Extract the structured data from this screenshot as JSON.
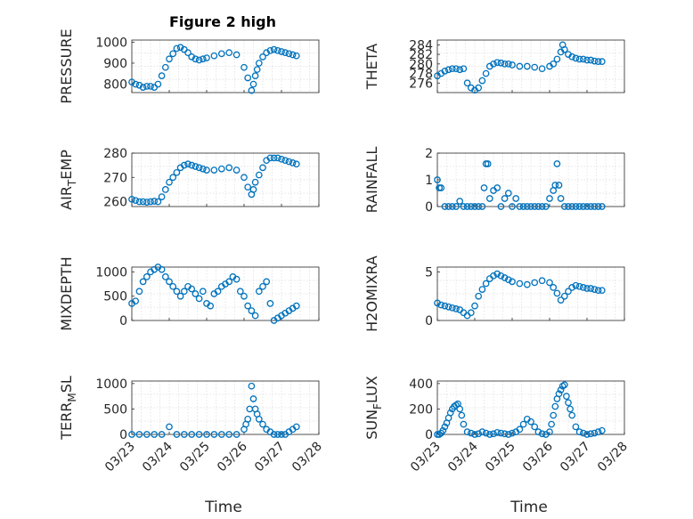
{
  "figure_title": "Figure 2 high",
  "x_date_ticks": [
    "03/23",
    "03/24",
    "03/25",
    "03/26",
    "03/27",
    "03/28"
  ],
  "xlabel": "Time",
  "marker_color": "#0072BD",
  "chart_data": [
    {
      "type": "scatter",
      "ylabel": "PRESSURE",
      "ylim": [
        760,
        1010
      ],
      "yticks": [
        "800",
        "900",
        "1000"
      ],
      "ytick_values": [
        800,
        900,
        1000
      ],
      "x": [
        0,
        0.1,
        0.2,
        0.3,
        0.4,
        0.5,
        0.6,
        0.7,
        0.8,
        0.9,
        1.0,
        1.1,
        1.2,
        1.3,
        1.4,
        1.5,
        1.6,
        1.7,
        1.8,
        1.9,
        2.0,
        2.2,
        2.4,
        2.6,
        2.8,
        3.0,
        3.1,
        3.2,
        3.25,
        3.3,
        3.35,
        3.4,
        3.5,
        3.6,
        3.7,
        3.8,
        3.9,
        4.0,
        4.1,
        4.2,
        4.3,
        4.4
      ],
      "values": [
        810,
        800,
        795,
        785,
        790,
        790,
        785,
        800,
        840,
        880,
        920,
        945,
        970,
        975,
        965,
        950,
        930,
        920,
        915,
        920,
        925,
        935,
        945,
        950,
        940,
        880,
        830,
        770,
        800,
        840,
        870,
        900,
        930,
        950,
        960,
        965,
        960,
        955,
        950,
        945,
        940,
        935
      ]
    },
    {
      "type": "scatter",
      "ylabel": "THETA",
      "ylim": [
        274,
        285
      ],
      "yticks": [
        "276",
        "278",
        "280",
        "282",
        "284"
      ],
      "ytick_values": [
        276,
        278,
        280,
        282,
        284
      ],
      "x": [
        0,
        0.1,
        0.2,
        0.3,
        0.4,
        0.5,
        0.6,
        0.7,
        0.8,
        0.9,
        1.0,
        1.1,
        1.2,
        1.3,
        1.4,
        1.5,
        1.6,
        1.7,
        1.8,
        1.9,
        2.0,
        2.2,
        2.4,
        2.6,
        2.8,
        3.0,
        3.1,
        3.2,
        3.3,
        3.35,
        3.4,
        3.5,
        3.6,
        3.7,
        3.8,
        3.9,
        4.0,
        4.1,
        4.2,
        4.3,
        4.4
      ],
      "values": [
        277.5,
        278,
        278.5,
        278.8,
        279,
        279,
        278.8,
        279,
        276,
        275,
        274.5,
        275,
        276.5,
        278,
        279.5,
        280,
        280.3,
        280.2,
        280,
        280,
        279.8,
        279.5,
        279.5,
        279.3,
        279,
        279.5,
        280,
        281,
        282.5,
        284,
        283,
        282,
        281.5,
        281.2,
        281,
        281,
        280.8,
        280.8,
        280.6,
        280.5,
        280.5
      ]
    },
    {
      "type": "scatter",
      "ylabel": "AIR_TEMP",
      "ylim": [
        258,
        280
      ],
      "yticks": [
        "260",
        "270",
        "280"
      ],
      "ytick_values": [
        260,
        270,
        280
      ],
      "x": [
        0,
        0.1,
        0.2,
        0.3,
        0.4,
        0.5,
        0.6,
        0.7,
        0.8,
        0.9,
        1.0,
        1.1,
        1.2,
        1.3,
        1.4,
        1.5,
        1.6,
        1.7,
        1.8,
        1.9,
        2.0,
        2.2,
        2.4,
        2.6,
        2.8,
        3.0,
        3.1,
        3.2,
        3.25,
        3.3,
        3.4,
        3.5,
        3.6,
        3.7,
        3.8,
        3.9,
        4.0,
        4.1,
        4.2,
        4.3,
        4.4
      ],
      "values": [
        261,
        260.5,
        260,
        260,
        259.8,
        260,
        260.2,
        260,
        262,
        265,
        268,
        270,
        272,
        274,
        275,
        275.5,
        275,
        274.5,
        274,
        273.5,
        273,
        273,
        273.5,
        274,
        273,
        270,
        266,
        263,
        265,
        268,
        271,
        274,
        277,
        278,
        278,
        278,
        277.5,
        277,
        276.5,
        276,
        275.5
      ]
    },
    {
      "type": "scatter",
      "ylabel": "RAINFALL",
      "ylim": [
        0,
        2
      ],
      "yticks": [
        "0",
        "1",
        "2"
      ],
      "ytick_values": [
        0,
        1,
        2
      ],
      "x": [
        0,
        0.05,
        0.1,
        0.2,
        0.3,
        0.4,
        0.5,
        0.6,
        0.7,
        0.8,
        0.9,
        1.0,
        1.1,
        1.2,
        1.25,
        1.3,
        1.35,
        1.4,
        1.5,
        1.6,
        1.7,
        1.8,
        1.9,
        2.0,
        2.1,
        2.2,
        2.3,
        2.4,
        2.5,
        2.6,
        2.7,
        2.8,
        2.9,
        3.0,
        3.1,
        3.15,
        3.2,
        3.25,
        3.3,
        3.4,
        3.5,
        3.6,
        3.7,
        3.8,
        3.9,
        4.0,
        4.1,
        4.2,
        4.3,
        4.4
      ],
      "values": [
        1.0,
        0.7,
        0.7,
        0,
        0,
        0,
        0,
        0.2,
        0,
        0,
        0,
        0,
        0,
        0,
        0.7,
        1.6,
        1.6,
        0.3,
        0.6,
        0.7,
        0,
        0.3,
        0.5,
        0,
        0.3,
        0,
        0,
        0,
        0,
        0,
        0,
        0,
        0,
        0.3,
        0.6,
        0.8,
        1.6,
        0.8,
        0.3,
        0,
        0,
        0,
        0,
        0,
        0,
        0,
        0,
        0,
        0,
        0
      ]
    },
    {
      "type": "scatter",
      "ylabel": "MIXDEPTH",
      "ylim": [
        0,
        1100
      ],
      "yticks": [
        "0",
        "500",
        "1000"
      ],
      "ytick_values": [
        0,
        500,
        1000
      ],
      "x": [
        0,
        0.1,
        0.2,
        0.3,
        0.4,
        0.5,
        0.6,
        0.7,
        0.8,
        0.9,
        1.0,
        1.1,
        1.2,
        1.3,
        1.4,
        1.5,
        1.6,
        1.7,
        1.8,
        1.9,
        2.0,
        2.1,
        2.2,
        2.3,
        2.4,
        2.5,
        2.6,
        2.7,
        2.8,
        2.9,
        3.0,
        3.1,
        3.2,
        3.3,
        3.4,
        3.5,
        3.6,
        3.7,
        3.8,
        3.9,
        4.0,
        4.1,
        4.2,
        4.3,
        4.4
      ],
      "values": [
        350,
        400,
        600,
        800,
        900,
        1000,
        1050,
        1100,
        1050,
        900,
        800,
        700,
        600,
        500,
        600,
        700,
        650,
        550,
        450,
        600,
        350,
        300,
        550,
        600,
        700,
        750,
        800,
        900,
        850,
        600,
        500,
        300,
        200,
        100,
        600,
        700,
        800,
        350,
        0,
        50,
        100,
        150,
        200,
        250,
        300
      ]
    },
    {
      "type": "scatter",
      "ylabel": "H2OMIXRA",
      "ylim": [
        0,
        5.5
      ],
      "yticks": [
        "0",
        "5"
      ],
      "ytick_values": [
        0,
        5
      ],
      "x": [
        0,
        0.1,
        0.2,
        0.3,
        0.4,
        0.5,
        0.6,
        0.7,
        0.8,
        0.9,
        1.0,
        1.1,
        1.2,
        1.3,
        1.4,
        1.5,
        1.6,
        1.7,
        1.8,
        1.9,
        2.0,
        2.2,
        2.4,
        2.6,
        2.8,
        3.0,
        3.1,
        3.2,
        3.3,
        3.4,
        3.5,
        3.6,
        3.7,
        3.8,
        3.9,
        4.0,
        4.1,
        4.2,
        4.3,
        4.4
      ],
      "values": [
        1.8,
        1.6,
        1.5,
        1.4,
        1.3,
        1.2,
        1.1,
        0.8,
        0.5,
        0.8,
        1.5,
        2.5,
        3.2,
        3.8,
        4.3,
        4.6,
        4.8,
        4.6,
        4.4,
        4.2,
        4.0,
        3.8,
        3.7,
        3.9,
        4.1,
        3.9,
        3.4,
        2.8,
        2.1,
        2.5,
        3.0,
        3.4,
        3.6,
        3.5,
        3.4,
        3.3,
        3.3,
        3.2,
        3.1,
        3.1
      ]
    },
    {
      "type": "scatter",
      "ylabel": "TERR_MSL",
      "ylim": [
        0,
        1050
      ],
      "yticks": [
        "0",
        "500",
        "1000"
      ],
      "ytick_values": [
        0,
        500,
        1000
      ],
      "x": [
        0,
        0.2,
        0.4,
        0.6,
        0.8,
        1.0,
        1.2,
        1.4,
        1.6,
        1.8,
        2.0,
        2.2,
        2.4,
        2.6,
        2.8,
        3.0,
        3.05,
        3.1,
        3.15,
        3.2,
        3.25,
        3.3,
        3.35,
        3.4,
        3.5,
        3.6,
        3.7,
        3.8,
        3.9,
        4.0,
        4.1,
        4.2,
        4.3,
        4.4
      ],
      "values": [
        0,
        0,
        0,
        0,
        0,
        150,
        0,
        0,
        0,
        0,
        0,
        0,
        0,
        0,
        0,
        100,
        200,
        300,
        500,
        950,
        700,
        500,
        400,
        300,
        200,
        100,
        50,
        0,
        0,
        0,
        0,
        50,
        100,
        150
      ]
    },
    {
      "type": "scatter",
      "ylabel": "SUN_FLUX",
      "ylim": [
        0,
        420
      ],
      "yticks": [
        "0",
        "200",
        "400"
      ],
      "ytick_values": [
        0,
        200,
        400
      ],
      "x": [
        0,
        0.05,
        0.1,
        0.15,
        0.2,
        0.25,
        0.3,
        0.35,
        0.4,
        0.45,
        0.5,
        0.55,
        0.6,
        0.65,
        0.7,
        0.8,
        0.9,
        1.0,
        1.1,
        1.2,
        1.3,
        1.4,
        1.5,
        1.6,
        1.7,
        1.8,
        1.9,
        2.0,
        2.1,
        2.2,
        2.3,
        2.4,
        2.5,
        2.6,
        2.7,
        2.8,
        2.9,
        3.0,
        3.05,
        3.1,
        3.15,
        3.2,
        3.25,
        3.3,
        3.35,
        3.4,
        3.45,
        3.5,
        3.55,
        3.6,
        3.7,
        3.8,
        3.9,
        4.0,
        4.1,
        4.2,
        4.3,
        4.4
      ],
      "values": [
        0,
        0,
        10,
        30,
        60,
        90,
        130,
        170,
        200,
        220,
        230,
        240,
        200,
        150,
        80,
        20,
        10,
        0,
        5,
        20,
        10,
        0,
        5,
        15,
        10,
        5,
        0,
        10,
        20,
        40,
        80,
        120,
        100,
        60,
        20,
        5,
        0,
        20,
        80,
        150,
        220,
        280,
        320,
        350,
        380,
        390,
        300,
        250,
        200,
        150,
        60,
        20,
        10,
        0,
        5,
        10,
        20,
        30
      ]
    }
  ]
}
